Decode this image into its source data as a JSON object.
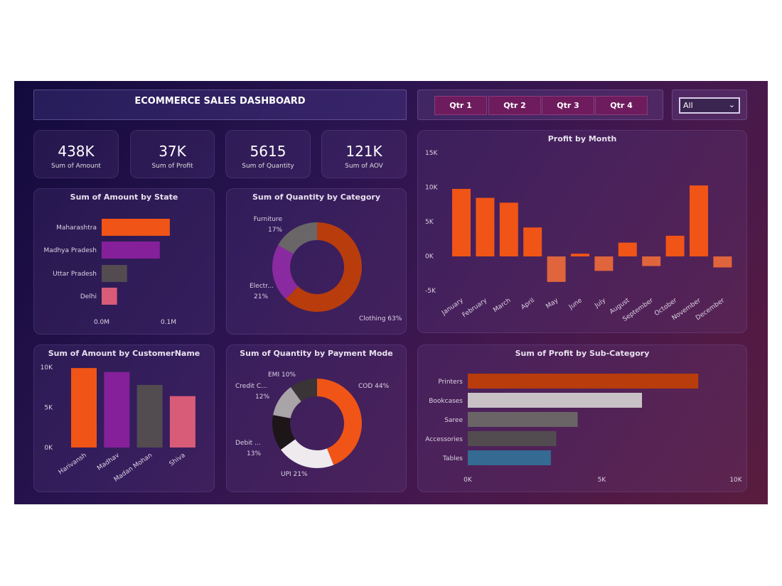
{
  "header": {
    "title": "ECOMMERCE SALES DASHBOARD"
  },
  "quarter_slicer": {
    "buttons": [
      "Qtr 1",
      "Qtr 2",
      "Qtr 3",
      "Qtr 4"
    ]
  },
  "dropdown": {
    "value": "All",
    "icon": "chevron-down-icon"
  },
  "kpis": [
    {
      "value": "438K",
      "label": "Sum of Amount"
    },
    {
      "value": "37K",
      "label": "Sum of Profit"
    },
    {
      "value": "5615",
      "label": "Sum of Quantity"
    },
    {
      "value": "121K",
      "label": "Sum of AOV"
    }
  ],
  "chart_data": [
    {
      "id": "state",
      "type": "bar",
      "orientation": "horizontal",
      "title": "Sum of Amount by State",
      "categories": [
        "Maharashtra",
        "Madhya Pradesh",
        "Uttar Pradesh",
        "Delhi"
      ],
      "values": [
        0.102,
        0.087,
        0.038,
        0.023
      ],
      "unit": "M",
      "xticks": [
        "0.0M",
        "0.1M"
      ],
      "colors": [
        "#f05416",
        "#85209a",
        "#524c50",
        "#d85c78"
      ]
    },
    {
      "id": "category",
      "type": "pie",
      "donut": true,
      "title": "Sum of Quantity by Category",
      "categories": [
        "Clothing",
        "Electr...",
        "Furniture"
      ],
      "values": [
        63,
        21,
        17
      ],
      "labels": [
        "Clothing 63%",
        "21%",
        "17%"
      ],
      "colors": [
        "#b83c0c",
        "#8a2aa0",
        "#6a6668"
      ]
    },
    {
      "id": "month",
      "type": "bar",
      "title": "Profit by Month",
      "categories": [
        "January",
        "February",
        "March",
        "April",
        "May",
        "June",
        "July",
        "August",
        "September",
        "October",
        "November",
        "December"
      ],
      "values": [
        9800,
        8500,
        7800,
        4200,
        -3700,
        400,
        -2100,
        2000,
        -1400,
        3000,
        10300,
        -1600
      ],
      "ylim": [
        -5000,
        15000
      ],
      "yticks": [
        "15K",
        "10K",
        "5K",
        "0K",
        "-5K"
      ],
      "colors": {
        "positive": "#f05416",
        "negative": "#e0643c"
      }
    },
    {
      "id": "customer",
      "type": "bar",
      "title": "Sum of Amount by CustomerName",
      "categories": [
        "Harivansh",
        "Madhav",
        "Madan Mohan",
        "Shiva"
      ],
      "values": [
        9900,
        9400,
        7800,
        6400
      ],
      "ylim": [
        0,
        10000
      ],
      "yticks": [
        "10K",
        "5K",
        "0K"
      ],
      "colors": [
        "#f05416",
        "#85209a",
        "#524c50",
        "#d85c78"
      ]
    },
    {
      "id": "payment",
      "type": "pie",
      "donut": true,
      "title": "Sum of Quantity by Payment Mode",
      "categories": [
        "COD",
        "UPI",
        "Debit ...",
        "Credit C...",
        "EMI"
      ],
      "values": [
        44,
        21,
        13,
        12,
        10
      ],
      "labels": [
        "COD 44%",
        "UPI 21%",
        "13%",
        "12%",
        "EMI 10%"
      ],
      "colors": [
        "#f05416",
        "#eeeaee",
        "#1c1618",
        "#a8a4a8",
        "#3a3436"
      ]
    },
    {
      "id": "subcat",
      "type": "bar",
      "orientation": "horizontal",
      "title": "Sum of Profit by Sub-Category",
      "categories": [
        "Printers",
        "Bookcases",
        "Saree",
        "Accessories",
        "Tables"
      ],
      "values": [
        8600,
        6500,
        4100,
        3300,
        3100
      ],
      "xlim": [
        0,
        10000
      ],
      "xticks": [
        "0K",
        "5K",
        "10K"
      ],
      "colors": [
        "#b83c0c",
        "#c8c2c6",
        "#6a6466",
        "#524c50",
        "#356a92"
      ]
    }
  ]
}
